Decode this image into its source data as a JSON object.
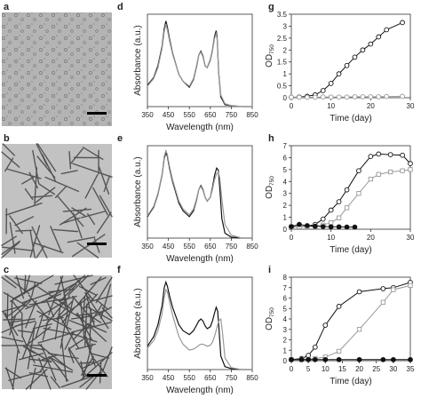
{
  "panel_labels": [
    "a",
    "b",
    "c",
    "d",
    "e",
    "f",
    "g",
    "h",
    "i"
  ],
  "chart_data": [
    {
      "panel": "d",
      "type": "line",
      "xlabel": "Wavelength (nm)",
      "ylabel": "Absorbance (a.u.)",
      "xlim": [
        350,
        850
      ],
      "xticks": [
        350,
        450,
        550,
        650,
        750,
        850
      ],
      "series": [
        {
          "color": "#111111",
          "x": [
            350,
            380,
            400,
            420,
            430,
            438,
            445,
            455,
            470,
            500,
            520,
            550,
            570,
            585,
            595,
            605,
            615,
            625,
            635,
            650,
            660,
            670,
            678,
            682,
            690,
            700,
            720,
            750,
            800,
            850
          ],
          "y": [
            0.22,
            0.3,
            0.42,
            0.62,
            0.8,
            0.88,
            0.82,
            0.7,
            0.55,
            0.33,
            0.26,
            0.2,
            0.28,
            0.42,
            0.53,
            0.57,
            0.52,
            0.42,
            0.4,
            0.48,
            0.58,
            0.72,
            0.78,
            0.72,
            0.35,
            0.1,
            0.02,
            0.01,
            0.0,
            0.0
          ]
        },
        {
          "color": "#999999",
          "x": [
            350,
            380,
            400,
            420,
            430,
            438,
            445,
            455,
            470,
            500,
            520,
            550,
            570,
            585,
            595,
            605,
            615,
            625,
            635,
            650,
            660,
            670,
            678,
            682,
            690,
            700,
            720,
            750,
            800,
            850
          ],
          "y": [
            0.21,
            0.29,
            0.4,
            0.6,
            0.77,
            0.85,
            0.79,
            0.68,
            0.54,
            0.33,
            0.26,
            0.21,
            0.29,
            0.43,
            0.53,
            0.56,
            0.51,
            0.42,
            0.4,
            0.47,
            0.57,
            0.7,
            0.75,
            0.7,
            0.36,
            0.12,
            0.03,
            0.01,
            0.0,
            0.0
          ]
        }
      ]
    },
    {
      "panel": "e",
      "type": "line",
      "xlabel": "Wavelength (nm)",
      "ylabel": "Absorbance (a.u.)",
      "xlim": [
        350,
        850
      ],
      "xticks": [
        350,
        450,
        550,
        650,
        750,
        850
      ],
      "series": [
        {
          "color": "#111111",
          "x": [
            350,
            380,
            400,
            420,
            430,
            438,
            445,
            455,
            470,
            500,
            520,
            550,
            570,
            585,
            595,
            605,
            615,
            625,
            635,
            650,
            660,
            670,
            680,
            688,
            695,
            705,
            720,
            750,
            800,
            850
          ],
          "y": [
            0.22,
            0.32,
            0.45,
            0.65,
            0.82,
            0.88,
            0.84,
            0.72,
            0.58,
            0.36,
            0.28,
            0.22,
            0.28,
            0.4,
            0.5,
            0.54,
            0.5,
            0.42,
            0.38,
            0.42,
            0.52,
            0.64,
            0.72,
            0.7,
            0.52,
            0.2,
            0.05,
            0.01,
            0.0,
            0.0
          ]
        },
        {
          "color": "#999999",
          "x": [
            350,
            380,
            400,
            420,
            430,
            438,
            445,
            455,
            470,
            500,
            520,
            550,
            570,
            585,
            595,
            605,
            615,
            625,
            635,
            650,
            660,
            670,
            680,
            688,
            695,
            705,
            720,
            750,
            800,
            850
          ],
          "y": [
            0.23,
            0.33,
            0.46,
            0.66,
            0.84,
            0.9,
            0.86,
            0.74,
            0.6,
            0.38,
            0.3,
            0.24,
            0.3,
            0.41,
            0.5,
            0.53,
            0.49,
            0.42,
            0.38,
            0.42,
            0.5,
            0.6,
            0.66,
            0.68,
            0.62,
            0.4,
            0.14,
            0.03,
            0.0,
            0.0
          ]
        }
      ]
    },
    {
      "panel": "f",
      "type": "line",
      "xlabel": "Wavelength (nm)",
      "ylabel": "Absorbance (a.u.)",
      "xlim": [
        350,
        850
      ],
      "xticks": [
        350,
        450,
        550,
        650,
        750,
        850
      ],
      "series": [
        {
          "color": "#111111",
          "x": [
            350,
            380,
            400,
            420,
            430,
            438,
            445,
            455,
            470,
            500,
            520,
            550,
            570,
            585,
            595,
            605,
            615,
            625,
            635,
            650,
            660,
            670,
            678,
            685,
            692,
            700,
            720,
            750,
            800,
            850
          ],
          "y": [
            0.24,
            0.34,
            0.46,
            0.66,
            0.84,
            0.9,
            0.86,
            0.76,
            0.64,
            0.46,
            0.4,
            0.36,
            0.4,
            0.46,
            0.5,
            0.52,
            0.5,
            0.45,
            0.42,
            0.44,
            0.5,
            0.58,
            0.64,
            0.6,
            0.4,
            0.14,
            0.03,
            0.01,
            0.0,
            0.0
          ]
        },
        {
          "color": "#999999",
          "x": [
            350,
            380,
            400,
            420,
            430,
            438,
            445,
            455,
            470,
            500,
            520,
            550,
            570,
            585,
            595,
            605,
            615,
            625,
            635,
            650,
            660,
            670,
            680,
            690,
            700,
            708,
            720,
            750,
            800,
            850
          ],
          "y": [
            0.22,
            0.3,
            0.4,
            0.58,
            0.74,
            0.82,
            0.8,
            0.7,
            0.56,
            0.34,
            0.26,
            0.2,
            0.21,
            0.23,
            0.25,
            0.26,
            0.26,
            0.25,
            0.24,
            0.25,
            0.28,
            0.34,
            0.42,
            0.5,
            0.52,
            0.38,
            0.12,
            0.02,
            0.0,
            0.0
          ]
        }
      ]
    },
    {
      "panel": "g",
      "type": "line",
      "xlabel": "Time (day)",
      "ylabel": "OD750",
      "xlim": [
        0,
        30
      ],
      "ylim": [
        0,
        3.5
      ],
      "xticks": [
        0,
        10,
        20,
        30
      ],
      "yticks": [
        0,
        0.5,
        1,
        1.5,
        2,
        2.5,
        3,
        3.5
      ],
      "series": [
        {
          "color": "#111111",
          "marker": "open-circle",
          "x": [
            0,
            2,
            4,
            6,
            8,
            10,
            12,
            14,
            16,
            18,
            20,
            22,
            24,
            28
          ],
          "y": [
            0.02,
            0.03,
            0.06,
            0.12,
            0.3,
            0.6,
            1.0,
            1.35,
            1.7,
            2.0,
            2.25,
            2.55,
            2.85,
            3.15
          ]
        },
        {
          "color": "#999999",
          "marker": "open-circle",
          "x": [
            0,
            2,
            4,
            6,
            8,
            10,
            12,
            14,
            16,
            18,
            20,
            22,
            24,
            28
          ],
          "y": [
            0.02,
            0.02,
            0.02,
            0.02,
            0.03,
            0.03,
            0.03,
            0.03,
            0.04,
            0.04,
            0.04,
            0.04,
            0.05,
            0.06
          ]
        }
      ]
    },
    {
      "panel": "h",
      "type": "line",
      "xlabel": "Time (day)",
      "ylabel": "OD750",
      "xlim": [
        0,
        30
      ],
      "ylim": [
        0,
        7
      ],
      "xticks": [
        0,
        10,
        20,
        30
      ],
      "yticks": [
        0,
        1,
        2,
        3,
        4,
        5,
        6,
        7
      ],
      "series": [
        {
          "color": "#111111",
          "marker": "open-circle",
          "x": [
            0,
            2,
            4,
            6,
            8,
            10,
            12,
            14,
            17,
            20,
            22,
            25,
            28,
            30
          ],
          "y": [
            0.2,
            0.2,
            0.25,
            0.4,
            0.85,
            1.6,
            2.3,
            3.3,
            4.9,
            6.1,
            6.3,
            6.25,
            6.2,
            5.5
          ]
        },
        {
          "color": "#999999",
          "marker": "open-square",
          "x": [
            0,
            2,
            4,
            6,
            8,
            10,
            12,
            14,
            17,
            20,
            22,
            25,
            28,
            30
          ],
          "y": [
            0.2,
            0.2,
            0.2,
            0.25,
            0.35,
            0.55,
            0.95,
            1.8,
            3.0,
            4.2,
            4.6,
            4.8,
            4.9,
            5.0
          ]
        },
        {
          "color": "#111111",
          "marker": "filled-circle",
          "x": [
            0,
            2,
            4,
            6,
            8,
            10,
            12,
            14,
            16
          ],
          "y": [
            0.22,
            0.4,
            0.3,
            0.25,
            0.22,
            0.2,
            0.2,
            0.18,
            0.18
          ]
        }
      ]
    },
    {
      "panel": "i",
      "type": "line",
      "xlabel": "Time (day)",
      "ylabel": "OD750",
      "xlim": [
        0,
        35
      ],
      "ylim": [
        0,
        8
      ],
      "xticks": [
        0,
        5,
        10,
        15,
        20,
        25,
        30,
        35
      ],
      "yticks": [
        0,
        1,
        2,
        3,
        4,
        5,
        6,
        7,
        8
      ],
      "series": [
        {
          "color": "#111111",
          "marker": "open-circle",
          "x": [
            0,
            3,
            5,
            7,
            10,
            14,
            20,
            27,
            30,
            35
          ],
          "y": [
            0.1,
            0.2,
            0.5,
            1.3,
            3.4,
            5.2,
            6.6,
            6.9,
            7.0,
            7.5
          ]
        },
        {
          "color": "#999999",
          "marker": "open-square",
          "x": [
            0,
            3,
            5,
            7,
            10,
            14,
            20,
            27,
            30,
            35
          ],
          "y": [
            0.1,
            0.1,
            0.15,
            0.2,
            0.35,
            0.9,
            3.0,
            5.6,
            6.8,
            7.2
          ]
        },
        {
          "color": "#111111",
          "marker": "filled-circle",
          "x": [
            0,
            3,
            5,
            7,
            10,
            14,
            20,
            27,
            30,
            35
          ],
          "y": [
            0.1,
            0.1,
            0.1,
            0.1,
            0.1,
            0.1,
            0.1,
            0.1,
            0.1,
            0.1
          ]
        }
      ]
    }
  ]
}
